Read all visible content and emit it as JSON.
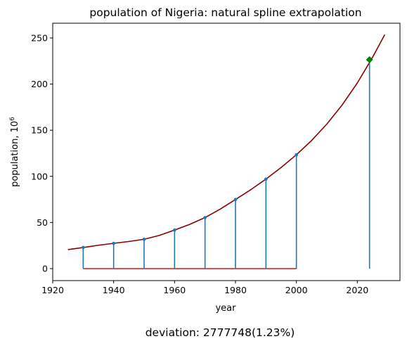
{
  "chart_data": {
    "type": "line",
    "title": "population of Nigeria: natural spline extrapolation",
    "xlabel": "year",
    "ylabel": "population, 10",
    "ylabel_superscript": "6",
    "xlim": [
      1920,
      2034
    ],
    "ylim": [
      -13,
      266
    ],
    "xticks": [
      1920,
      1940,
      1960,
      1980,
      2000,
      2020
    ],
    "yticks": [
      0,
      50,
      100,
      150,
      200,
      250
    ],
    "grid": false,
    "series": [
      {
        "kind": "stem",
        "color": "#1f77b4",
        "baseline": 0,
        "baseline_color": "#d62728",
        "x": [
          1930,
          1940,
          1950,
          1960,
          1970,
          1980,
          1990,
          2000
        ],
        "values": [
          22.9,
          27.4,
          31.8,
          41.8,
          55.3,
          74.9,
          97.0,
          123.4
        ]
      },
      {
        "kind": "curve",
        "color": "#8b0000",
        "x": [
          1925,
          1930,
          1935,
          1940,
          1945,
          1950,
          1955,
          1960,
          1965,
          1970,
          1975,
          1980,
          1985,
          1990,
          1995,
          2000,
          2005,
          2010,
          2015,
          2020,
          2025,
          2029
        ],
        "values": [
          20.6,
          22.9,
          25.3,
          27.4,
          29.4,
          31.8,
          36.0,
          41.8,
          48.0,
          55.3,
          64.5,
          74.9,
          85.5,
          97.0,
          109.6,
          123.4,
          138.9,
          156.7,
          177.3,
          201.2,
          229.0,
          253.6
        ]
      },
      {
        "kind": "stem",
        "color": "#1f77b4",
        "marker": "diamond",
        "marker_color": "#008000",
        "baseline": 0,
        "x": [
          2024
        ],
        "values": [
          226.5
        ]
      }
    ]
  },
  "footer": {
    "deviation_text": "deviation: 2777748(1.23%)"
  }
}
